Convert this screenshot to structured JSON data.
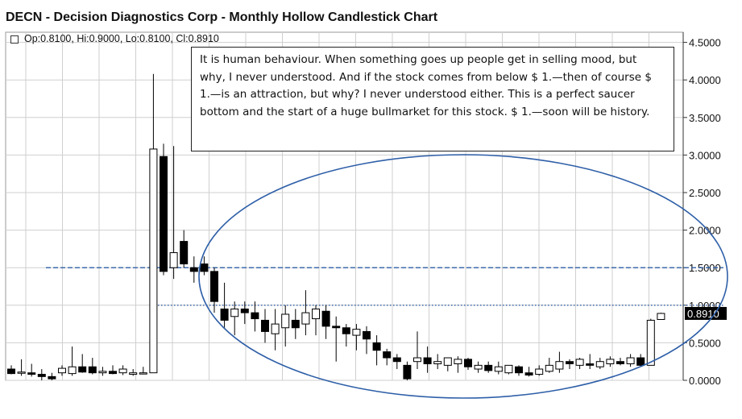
{
  "title": "DECN - Decision Diagnostics Corp - Monthly Hollow Candlestick Chart",
  "ohlc_label": "Op:0.8100, Hi:0.9000, Lo:0.8100, Cl:0.8910",
  "annotation": "It is human behaviour. When something goes up people get in selling mood, but why, I never understood.  And if the stock comes from below $ 1.—then of course $ 1.—is an attraction, but why? I never understood  either. This is a perfect saucer bottom  and the start of a huge bullmarket for this stock. $ 1.—soon will be history.",
  "colors": {
    "grid": "#cfcfcf",
    "candle_down": "#000000",
    "candle_up": "#ffffff",
    "ellipse": "#2e5fa8",
    "dashed_line": "#2e5fa8",
    "price_tag_bg": "#000000",
    "price_tag_text": "#ffffff"
  },
  "chart_data": {
    "type": "candlestick",
    "style": "hollow",
    "interval": "monthly",
    "ylim": [
      0,
      4.6
    ],
    "yticks": [
      "4.5000",
      "4.0000",
      "3.5000",
      "3.0000",
      "2.5000",
      "2.0000",
      "1.5000",
      "1.0000",
      "0.5000",
      "0.0000"
    ],
    "last_price_label": "0.8910",
    "horizontal_lines": [
      {
        "value": 1.5,
        "style": "dashed"
      },
      {
        "value": 1.0,
        "style": "dotted"
      }
    ],
    "annotation_shape": "ellipse",
    "candles": [
      {
        "o": 0.15,
        "h": 0.2,
        "l": 0.08,
        "c": 0.09
      },
      {
        "o": 0.1,
        "h": 0.28,
        "l": 0.06,
        "c": 0.11
      },
      {
        "o": 0.1,
        "h": 0.22,
        "l": 0.05,
        "c": 0.08
      },
      {
        "o": 0.08,
        "h": 0.15,
        "l": 0.0,
        "c": 0.05
      },
      {
        "o": 0.05,
        "h": 0.1,
        "l": 0.0,
        "c": 0.02
      },
      {
        "o": 0.1,
        "h": 0.2,
        "l": 0.06,
        "c": 0.16
      },
      {
        "o": 0.09,
        "h": 0.45,
        "l": 0.06,
        "c": 0.18
      },
      {
        "o": 0.18,
        "h": 0.35,
        "l": 0.1,
        "c": 0.11
      },
      {
        "o": 0.18,
        "h": 0.3,
        "l": 0.08,
        "c": 0.1
      },
      {
        "o": 0.1,
        "h": 0.18,
        "l": 0.06,
        "c": 0.12
      },
      {
        "o": 0.12,
        "h": 0.2,
        "l": 0.08,
        "c": 0.09
      },
      {
        "o": 0.1,
        "h": 0.2,
        "l": 0.07,
        "c": 0.15
      },
      {
        "o": 0.08,
        "h": 0.15,
        "l": 0.06,
        "c": 0.1
      },
      {
        "o": 0.1,
        "h": 0.18,
        "l": 0.08,
        "c": 0.1
      },
      {
        "o": 0.1,
        "h": 4.08,
        "l": 0.1,
        "c": 3.08
      },
      {
        "o": 2.98,
        "h": 3.15,
        "l": 1.4,
        "c": 1.45
      },
      {
        "o": 1.5,
        "h": 3.12,
        "l": 1.35,
        "c": 1.7
      },
      {
        "o": 1.85,
        "h": 2.0,
        "l": 1.5,
        "c": 1.55
      },
      {
        "o": 1.5,
        "h": 1.65,
        "l": 1.3,
        "c": 1.45
      },
      {
        "o": 1.55,
        "h": 1.65,
        "l": 1.4,
        "c": 1.45
      },
      {
        "o": 1.45,
        "h": 1.5,
        "l": 0.9,
        "c": 1.05
      },
      {
        "o": 0.95,
        "h": 1.3,
        "l": 0.7,
        "c": 0.8
      },
      {
        "o": 0.85,
        "h": 1.05,
        "l": 0.6,
        "c": 0.95
      },
      {
        "o": 0.95,
        "h": 1.05,
        "l": 0.75,
        "c": 0.9
      },
      {
        "o": 0.9,
        "h": 1.05,
        "l": 0.65,
        "c": 0.82
      },
      {
        "o": 0.8,
        "h": 0.95,
        "l": 0.5,
        "c": 0.65
      },
      {
        "o": 0.62,
        "h": 0.95,
        "l": 0.4,
        "c": 0.75
      },
      {
        "o": 0.7,
        "h": 1.0,
        "l": 0.45,
        "c": 0.88
      },
      {
        "o": 0.8,
        "h": 0.95,
        "l": 0.55,
        "c": 0.7
      },
      {
        "o": 0.75,
        "h": 1.2,
        "l": 0.6,
        "c": 0.9
      },
      {
        "o": 0.82,
        "h": 1.0,
        "l": 0.6,
        "c": 0.95
      },
      {
        "o": 0.92,
        "h": 1.0,
        "l": 0.55,
        "c": 0.72
      },
      {
        "o": 0.72,
        "h": 0.85,
        "l": 0.25,
        "c": 0.7
      },
      {
        "o": 0.7,
        "h": 0.75,
        "l": 0.45,
        "c": 0.62
      },
      {
        "o": 0.6,
        "h": 0.75,
        "l": 0.4,
        "c": 0.68
      },
      {
        "o": 0.65,
        "h": 0.72,
        "l": 0.35,
        "c": 0.55
      },
      {
        "o": 0.5,
        "h": 0.6,
        "l": 0.2,
        "c": 0.4
      },
      {
        "o": 0.38,
        "h": 0.42,
        "l": 0.2,
        "c": 0.3
      },
      {
        "o": 0.3,
        "h": 0.35,
        "l": 0.15,
        "c": 0.25
      },
      {
        "o": 0.2,
        "h": 0.25,
        "l": 0.0,
        "c": 0.02
      },
      {
        "o": 0.25,
        "h": 0.65,
        "l": 0.15,
        "c": 0.3
      },
      {
        "o": 0.3,
        "h": 0.45,
        "l": 0.1,
        "c": 0.22
      },
      {
        "o": 0.22,
        "h": 0.35,
        "l": 0.15,
        "c": 0.25
      },
      {
        "o": 0.2,
        "h": 0.3,
        "l": 0.12,
        "c": 0.3
      },
      {
        "o": 0.22,
        "h": 0.32,
        "l": 0.1,
        "c": 0.28
      },
      {
        "o": 0.28,
        "h": 0.3,
        "l": 0.14,
        "c": 0.18
      },
      {
        "o": 0.15,
        "h": 0.25,
        "l": 0.1,
        "c": 0.2
      },
      {
        "o": 0.2,
        "h": 0.25,
        "l": 0.1,
        "c": 0.13
      },
      {
        "o": 0.12,
        "h": 0.25,
        "l": 0.08,
        "c": 0.18
      },
      {
        "o": 0.1,
        "h": 0.2,
        "l": 0.08,
        "c": 0.2
      },
      {
        "o": 0.18,
        "h": 0.2,
        "l": 0.06,
        "c": 0.1
      },
      {
        "o": 0.1,
        "h": 0.18,
        "l": 0.05,
        "c": 0.07
      },
      {
        "o": 0.08,
        "h": 0.2,
        "l": 0.06,
        "c": 0.15
      },
      {
        "o": 0.12,
        "h": 0.3,
        "l": 0.1,
        "c": 0.2
      },
      {
        "o": 0.15,
        "h": 0.38,
        "l": 0.1,
        "c": 0.25
      },
      {
        "o": 0.25,
        "h": 0.28,
        "l": 0.15,
        "c": 0.22
      },
      {
        "o": 0.2,
        "h": 0.3,
        "l": 0.15,
        "c": 0.28
      },
      {
        "o": 0.22,
        "h": 0.35,
        "l": 0.15,
        "c": 0.2
      },
      {
        "o": 0.18,
        "h": 0.3,
        "l": 0.15,
        "c": 0.25
      },
      {
        "o": 0.22,
        "h": 0.32,
        "l": 0.18,
        "c": 0.28
      },
      {
        "o": 0.25,
        "h": 0.3,
        "l": 0.2,
        "c": 0.22
      },
      {
        "o": 0.22,
        "h": 0.35,
        "l": 0.18,
        "c": 0.3
      },
      {
        "o": 0.3,
        "h": 0.35,
        "l": 0.18,
        "c": 0.2
      },
      {
        "o": 0.2,
        "h": 0.82,
        "l": 0.2,
        "c": 0.8
      },
      {
        "o": 0.81,
        "h": 0.9,
        "l": 0.81,
        "c": 0.891
      }
    ]
  }
}
